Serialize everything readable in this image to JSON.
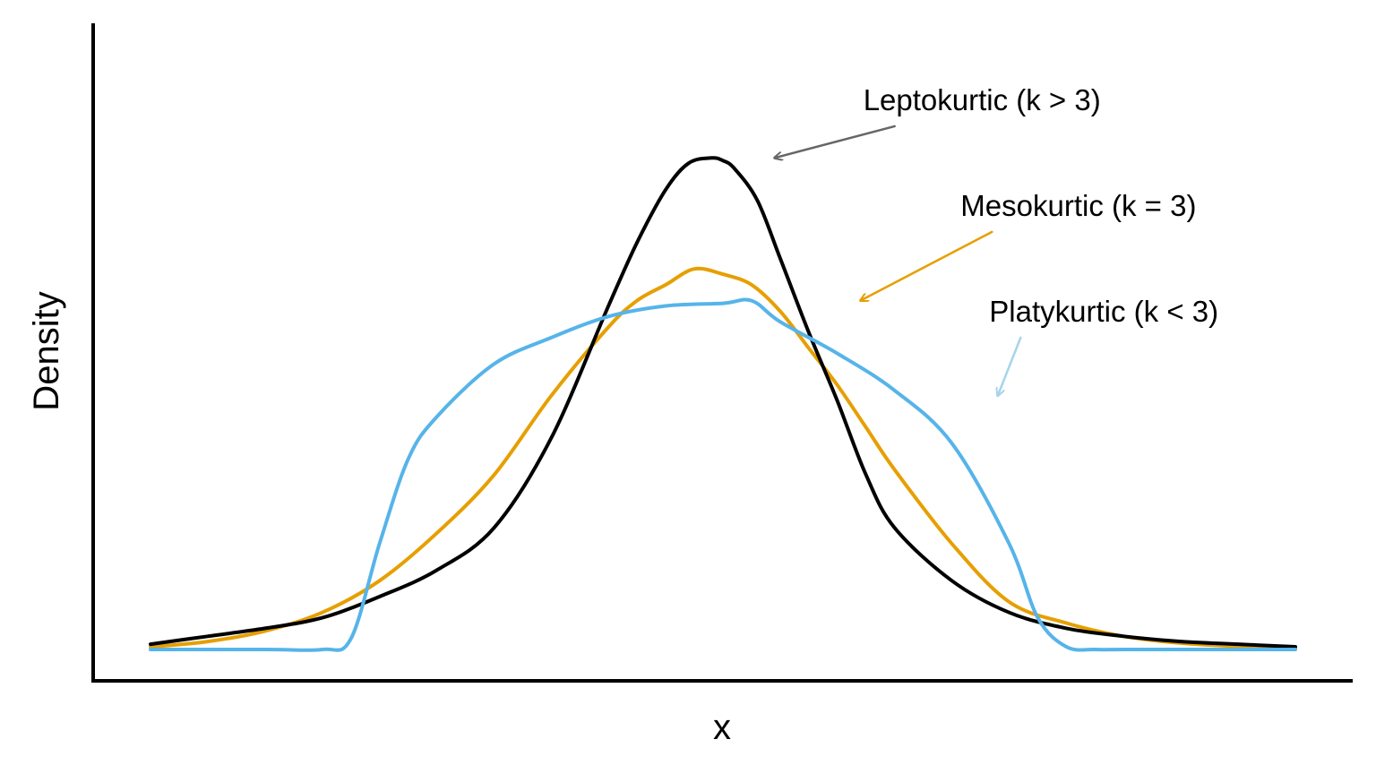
{
  "chart_data": {
    "type": "line",
    "xlabel": "x",
    "ylabel": "Density",
    "xlim": [
      -5,
      5
    ],
    "ylim": [
      0,
      1
    ],
    "grid": false,
    "series": [
      {
        "name": "Leptokurtic (k > 3)",
        "color": "#000000",
        "x": [
          -5.0,
          -4.5,
          -4.0,
          -3.5,
          -3.0,
          -2.5,
          -2.0,
          -1.5,
          -1.0,
          -0.75,
          -0.5,
          -0.3,
          -0.1,
          0.0,
          0.1,
          0.3,
          0.5,
          0.75,
          1.0,
          1.25,
          1.5,
          2.0,
          2.5,
          3.0,
          3.5,
          4.0,
          4.5,
          5.0
        ],
        "y": [
          0.01,
          0.025,
          0.04,
          0.06,
          0.1,
          0.15,
          0.23,
          0.4,
          0.65,
          0.77,
          0.87,
          0.92,
          0.93,
          0.925,
          0.91,
          0.85,
          0.74,
          0.6,
          0.47,
          0.33,
          0.23,
          0.13,
          0.07,
          0.04,
          0.025,
          0.015,
          0.01,
          0.005
        ]
      },
      {
        "name": "Mesokurtic (k = 3)",
        "color": "#E69F00",
        "x": [
          -5.0,
          -4.5,
          -4.0,
          -3.5,
          -3.0,
          -2.5,
          -2.0,
          -1.5,
          -1.0,
          -0.75,
          -0.5,
          -0.25,
          0.0,
          0.25,
          0.5,
          0.75,
          1.0,
          1.25,
          1.5,
          2.0,
          2.5,
          3.0,
          3.5,
          4.0,
          4.5,
          5.0
        ],
        "y": [
          0.005,
          0.015,
          0.035,
          0.07,
          0.13,
          0.22,
          0.33,
          0.48,
          0.61,
          0.66,
          0.69,
          0.72,
          0.71,
          0.69,
          0.64,
          0.57,
          0.5,
          0.42,
          0.34,
          0.2,
          0.09,
          0.05,
          0.025,
          0.012,
          0.006,
          0.003
        ]
      },
      {
        "name": "Platykurtic (k < 3)",
        "color": "#56B4E9",
        "x": [
          -5.0,
          -4.0,
          -3.5,
          -3.25,
          -3.0,
          -2.75,
          -2.5,
          -2.0,
          -1.5,
          -1.0,
          -0.5,
          0.0,
          0.25,
          0.5,
          1.0,
          1.5,
          2.0,
          2.5,
          2.75,
          3.0,
          3.25,
          3.5,
          4.0,
          5.0
        ],
        "y": [
          0.0,
          0.0,
          0.0,
          0.02,
          0.2,
          0.36,
          0.44,
          0.54,
          0.59,
          0.63,
          0.65,
          0.655,
          0.66,
          0.62,
          0.56,
          0.49,
          0.39,
          0.2,
          0.06,
          0.005,
          0.0,
          0.0,
          0.0,
          0.0
        ]
      }
    ],
    "annotations": [
      {
        "text": "Leptokurtic (k > 3)",
        "x_from": 1.5,
        "y_from": 0.99,
        "x_to": 0.45,
        "y_to": 0.93,
        "arrow_color": "#666666"
      },
      {
        "text": "Mesokurtic (k = 3)",
        "x_from": 2.35,
        "y_from": 0.79,
        "x_to": 1.2,
        "y_to": 0.66,
        "arrow_color": "#E69F00"
      },
      {
        "text": "Platykurtic (k < 3)",
        "x_from": 2.6,
        "y_from": 0.59,
        "x_to": 2.4,
        "y_to": 0.48,
        "arrow_color": "#A6D4EA"
      }
    ]
  }
}
